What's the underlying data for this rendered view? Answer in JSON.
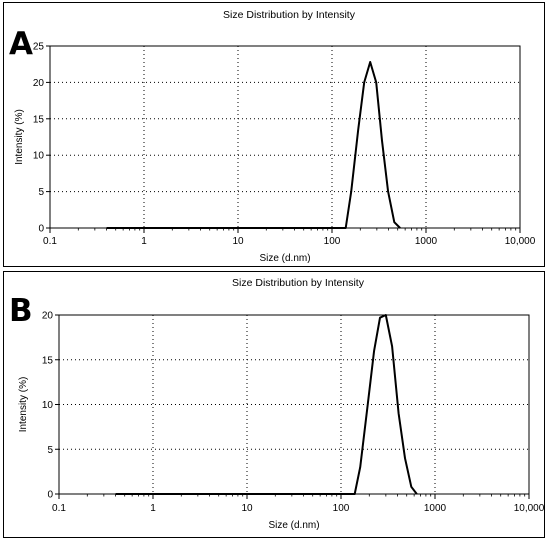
{
  "panels": [
    {
      "letter": "A"
    },
    {
      "letter": "B"
    }
  ],
  "chart_data": [
    {
      "type": "line",
      "title": "Size Distribution by Intensity",
      "xlabel": "Size (d.nm)",
      "ylabel": "Intensity (%)",
      "xscale": "log",
      "xlim": [
        0.1,
        10000
      ],
      "ylim": [
        0,
        25
      ],
      "xticks": [
        0.1,
        1,
        10,
        100,
        1000,
        10000
      ],
      "xtick_labels": [
        "0.1",
        "1",
        "10",
        "100",
        "1000",
        "10,000"
      ],
      "yticks": [
        0,
        5,
        10,
        15,
        20,
        25
      ],
      "grid": true,
      "color": "#000000",
      "series": [
        {
          "x": [
            0.4,
            140,
            160,
            190,
            220,
            255,
            295,
            340,
            395,
            460,
            530
          ],
          "y": [
            0,
            0,
            5.0,
            13.5,
            20.0,
            22.8,
            20.0,
            12.0,
            5.0,
            0.8,
            0
          ]
        }
      ]
    },
    {
      "type": "line",
      "title": "Size Distribution by Intensity",
      "xlabel": "Size (d.nm)",
      "ylabel": "Intensity (%)",
      "xscale": "log",
      "xlim": [
        0.1,
        10000
      ],
      "ylim": [
        0,
        20
      ],
      "xticks": [
        0.1,
        1,
        10,
        100,
        1000,
        10000
      ],
      "xtick_labels": [
        "0.1",
        "1",
        "10",
        "100",
        "1000",
        "10,000"
      ],
      "yticks": [
        0,
        5,
        10,
        15,
        20
      ],
      "grid": true,
      "color": "#000000",
      "series": [
        {
          "x": [
            0.4,
            140,
            160,
            190,
            225,
            260,
            300,
            350,
            410,
            480,
            560,
            640
          ],
          "y": [
            0,
            0,
            3.0,
            9.5,
            16.0,
            19.7,
            20.0,
            16.5,
            9.0,
            4.0,
            0.8,
            0
          ]
        }
      ]
    }
  ]
}
